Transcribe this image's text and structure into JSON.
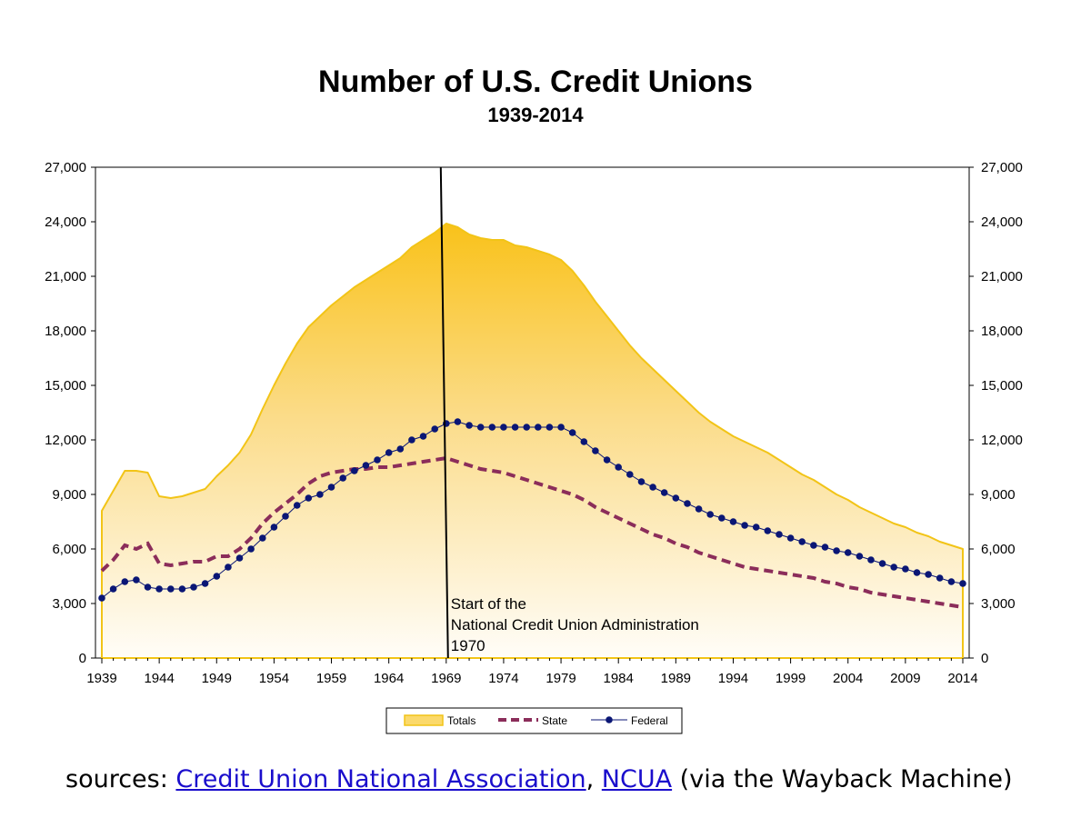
{
  "chart_data": {
    "type": "area",
    "title": "Number of U.S. Credit Unions",
    "subtitle": "1939-2014",
    "x_ticks": [
      "1939",
      "1944",
      "1949",
      "1954",
      "1959",
      "1964",
      "1969",
      "1974",
      "1979",
      "1984",
      "1989",
      "1994",
      "1999",
      "2004",
      "2009",
      "2014"
    ],
    "x_range": [
      1939,
      2014
    ],
    "ylim": [
      0,
      27000
    ],
    "y_ticks": [
      "0",
      "3,000",
      "6,000",
      "9,000",
      "12,000",
      "15,000",
      "18,000",
      "21,000",
      "24,000",
      "27,000"
    ],
    "secondary_y_ticks": [
      "0",
      "3,000",
      "6,000",
      "9,000",
      "12,000",
      "15,000",
      "18,000",
      "21,000",
      "24,000",
      "27,000"
    ],
    "colors": {
      "totals_line": "#f2c417",
      "totals_fill_top": "#f9c21a",
      "state": "#8b2d5a",
      "federal": "#0a1675"
    },
    "series": [
      {
        "name": "Totals",
        "x": [
          1939,
          1940,
          1941,
          1942,
          1943,
          1944,
          1945,
          1946,
          1947,
          1948,
          1949,
          1950,
          1951,
          1952,
          1953,
          1954,
          1955,
          1956,
          1957,
          1958,
          1959,
          1960,
          1961,
          1962,
          1963,
          1964,
          1965,
          1966,
          1967,
          1968,
          1969,
          1970,
          1971,
          1972,
          1973,
          1974,
          1975,
          1976,
          1977,
          1978,
          1979,
          1980,
          1981,
          1982,
          1983,
          1984,
          1985,
          1986,
          1987,
          1988,
          1989,
          1990,
          1991,
          1992,
          1993,
          1994,
          1995,
          1996,
          1997,
          1998,
          1999,
          2000,
          2001,
          2002,
          2003,
          2004,
          2005,
          2006,
          2007,
          2008,
          2009,
          2010,
          2011,
          2012,
          2013,
          2014
        ],
        "values": [
          8100,
          9200,
          10300,
          10300,
          10200,
          8900,
          8800,
          8900,
          9100,
          9300,
          10000,
          10600,
          11300,
          12300,
          13700,
          15000,
          16200,
          17300,
          18200,
          18800,
          19400,
          19900,
          20400,
          20800,
          21200,
          21600,
          22000,
          22600,
          23000,
          23400,
          23900,
          23700,
          23300,
          23100,
          23000,
          23000,
          22700,
          22600,
          22400,
          22200,
          21900,
          21300,
          20500,
          19600,
          18800,
          18000,
          17200,
          16500,
          15900,
          15300,
          14700,
          14100,
          13500,
          13000,
          12600,
          12200,
          11900,
          11600,
          11300,
          10900,
          10500,
          10100,
          9800,
          9400,
          9000,
          8700,
          8300,
          8000,
          7700,
          7400,
          7200,
          6900,
          6700,
          6400,
          6200,
          6000
        ]
      },
      {
        "name": "State",
        "x": [
          1939,
          1940,
          1941,
          1942,
          1943,
          1944,
          1945,
          1946,
          1947,
          1948,
          1949,
          1950,
          1951,
          1952,
          1953,
          1954,
          1955,
          1956,
          1957,
          1958,
          1959,
          1960,
          1961,
          1962,
          1963,
          1964,
          1965,
          1966,
          1967,
          1968,
          1969,
          1970,
          1971,
          1972,
          1973,
          1974,
          1975,
          1976,
          1977,
          1978,
          1979,
          1980,
          1981,
          1982,
          1983,
          1984,
          1985,
          1986,
          1987,
          1988,
          1989,
          1990,
          1991,
          1992,
          1993,
          1994,
          1995,
          1996,
          1997,
          1998,
          1999,
          2000,
          2001,
          2002,
          2003,
          2004,
          2005,
          2006,
          2007,
          2008,
          2009,
          2010,
          2011,
          2012,
          2013,
          2014
        ],
        "values": [
          4800,
          5400,
          6200,
          6000,
          6300,
          5200,
          5100,
          5200,
          5300,
          5300,
          5600,
          5600,
          6000,
          6600,
          7400,
          8000,
          8500,
          9000,
          9600,
          10000,
          10200,
          10300,
          10400,
          10400,
          10500,
          10500,
          10600,
          10700,
          10800,
          10900,
          11000,
          10800,
          10600,
          10400,
          10300,
          10200,
          10000,
          9800,
          9600,
          9400,
          9200,
          9000,
          8700,
          8300,
          8000,
          7700,
          7400,
          7100,
          6800,
          6600,
          6300,
          6100,
          5800,
          5600,
          5400,
          5200,
          5000,
          4900,
          4800,
          4700,
          4600,
          4500,
          4400,
          4200,
          4100,
          3900,
          3800,
          3600,
          3500,
          3400,
          3300,
          3200,
          3100,
          3000,
          2900,
          2800
        ]
      },
      {
        "name": "Federal",
        "x": [
          1939,
          1940,
          1941,
          1942,
          1943,
          1944,
          1945,
          1946,
          1947,
          1948,
          1949,
          1950,
          1951,
          1952,
          1953,
          1954,
          1955,
          1956,
          1957,
          1958,
          1959,
          1960,
          1961,
          1962,
          1963,
          1964,
          1965,
          1966,
          1967,
          1968,
          1969,
          1970,
          1971,
          1972,
          1973,
          1974,
          1975,
          1976,
          1977,
          1978,
          1979,
          1980,
          1981,
          1982,
          1983,
          1984,
          1985,
          1986,
          1987,
          1988,
          1989,
          1990,
          1991,
          1992,
          1993,
          1994,
          1995,
          1996,
          1997,
          1998,
          1999,
          2000,
          2001,
          2002,
          2003,
          2004,
          2005,
          2006,
          2007,
          2008,
          2009,
          2010,
          2011,
          2012,
          2013,
          2014
        ],
        "values": [
          3300,
          3800,
          4200,
          4300,
          3900,
          3800,
          3800,
          3800,
          3900,
          4100,
          4500,
          5000,
          5500,
          6000,
          6600,
          7200,
          7800,
          8400,
          8800,
          9000,
          9400,
          9900,
          10300,
          10600,
          10900,
          11300,
          11500,
          12000,
          12200,
          12600,
          12900,
          13000,
          12800,
          12700,
          12700,
          12700,
          12700,
          12700,
          12700,
          12700,
          12700,
          12400,
          11900,
          11400,
          10900,
          10500,
          10100,
          9700,
          9400,
          9100,
          8800,
          8500,
          8200,
          7900,
          7700,
          7500,
          7300,
          7200,
          7000,
          6800,
          6600,
          6400,
          6200,
          6100,
          5900,
          5800,
          5600,
          5400,
          5200,
          5000,
          4900,
          4700,
          4600,
          4400,
          4200,
          4100
        ]
      }
    ],
    "annotation": {
      "x": 1969,
      "lines": [
        "Start of the",
        "National Credit Union Administration",
        "1970"
      ]
    },
    "legend": {
      "entries": [
        "Totals",
        "State",
        "Federal"
      ],
      "placement": "bottom-center"
    }
  },
  "sources": {
    "prefix": "sources: ",
    "link1": "Credit Union National Association",
    "separator": ", ",
    "link2": "NCUA",
    "suffix": " (via the Wayback Machine)"
  }
}
